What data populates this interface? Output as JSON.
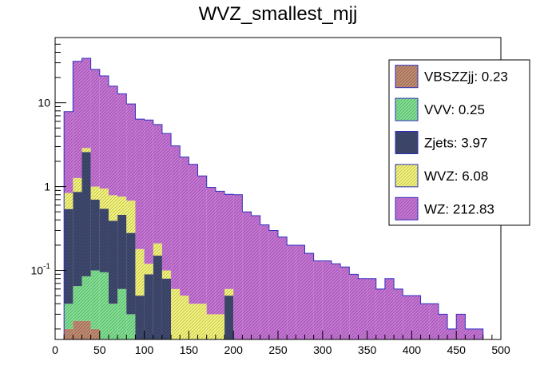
{
  "chart_data": {
    "type": "bar",
    "stacked": true,
    "title": "WVZ_smallest_mjj",
    "xlabel": "",
    "ylabel": "",
    "yscale": "log",
    "xlim": [
      0,
      500
    ],
    "ylim": [
      0.015,
      60
    ],
    "legend_position": "top-right",
    "bin_width": 10,
    "x_ticks": [
      "0",
      "50",
      "100",
      "150",
      "200",
      "250",
      "300",
      "350",
      "400",
      "450",
      "500"
    ],
    "y_ticks": [
      "10^{-1}",
      "1",
      "10"
    ],
    "x_edges": [
      0,
      10,
      20,
      30,
      40,
      50,
      60,
      70,
      80,
      90,
      100,
      110,
      120,
      130,
      140,
      150,
      160,
      170,
      180,
      190,
      200,
      210,
      220,
      230,
      240,
      250,
      260,
      270,
      280,
      290,
      300,
      310,
      320,
      330,
      340,
      350,
      360,
      370,
      380,
      390,
      400,
      410,
      420,
      430,
      440,
      450,
      460,
      470,
      480,
      490,
      500
    ],
    "series": [
      {
        "name": "VBSZZjj: 0.23",
        "color": "#c08a70",
        "values": [
          0,
          0.02,
          0.025,
          0.025,
          0.02,
          0.015,
          0,
          0,
          0,
          0,
          0,
          0,
          0,
          0,
          0,
          0,
          0,
          0,
          0,
          0,
          0,
          0,
          0,
          0,
          0,
          0,
          0,
          0,
          0,
          0,
          0,
          0,
          0,
          0,
          0,
          0,
          0,
          0,
          0,
          0,
          0,
          0,
          0,
          0,
          0,
          0,
          0,
          0,
          0,
          0
        ]
      },
      {
        "name": "VVV: 0.25",
        "color": "#7fe090",
        "values": [
          0,
          0.02,
          0.04,
          0.06,
          0.08,
          0.08,
          0.04,
          0.06,
          0.03,
          0,
          0,
          0,
          0,
          0,
          0,
          0,
          0,
          0,
          0,
          0,
          0,
          0,
          0,
          0,
          0,
          0,
          0,
          0,
          0,
          0,
          0,
          0,
          0,
          0,
          0,
          0,
          0,
          0,
          0,
          0,
          0,
          0,
          0,
          0,
          0,
          0,
          0,
          0,
          0,
          0
        ]
      },
      {
        "name": "Zjets: 3.97",
        "color": "#404a70",
        "values": [
          0,
          0.5,
          0.8,
          2.5,
          0.6,
          0.45,
          0.35,
          0.4,
          0.25,
          0.05,
          0.09,
          0.15,
          0.08,
          0,
          0,
          0,
          0,
          0,
          0,
          0.05,
          0,
          0,
          0,
          0,
          0,
          0,
          0,
          0,
          0,
          0,
          0,
          0,
          0,
          0,
          0,
          0,
          0,
          0,
          0,
          0,
          0,
          0,
          0,
          0,
          0,
          0,
          0,
          0,
          0,
          0
        ]
      },
      {
        "name": "WVZ: 6.08",
        "color": "#f4f47a",
        "values": [
          0,
          0.3,
          0.4,
          0.3,
          0.3,
          0.4,
          0.4,
          0.3,
          0.4,
          0.13,
          0.03,
          0.06,
          0.02,
          0.06,
          0.05,
          0.04,
          0.04,
          0.03,
          0.03,
          0.01,
          0,
          0,
          0,
          0,
          0,
          0,
          0,
          0,
          0,
          0,
          0,
          0,
          0,
          0,
          0,
          0,
          0,
          0,
          0,
          0,
          0,
          0,
          0,
          0,
          0,
          0,
          0,
          0,
          0,
          0
        ]
      },
      {
        "name": "WZ: 212.83",
        "color": "#c673d6",
        "values": [
          0,
          7,
          30,
          31,
          24,
          20,
          15,
          12,
          9,
          6.2,
          6.1,
          5.3,
          4.2,
          3.0,
          2.2,
          1.8,
          1.3,
          0.95,
          0.85,
          0.75,
          0.8,
          0.5,
          0.45,
          0.35,
          0.3,
          0.25,
          0.2,
          0.2,
          0.16,
          0.13,
          0.13,
          0.12,
          0.11,
          0.09,
          0.08,
          0.08,
          0.06,
          0.08,
          0.06,
          0.05,
          0.05,
          0.04,
          0.04,
          0.03,
          0.02,
          0.03,
          0.02,
          0.02,
          0,
          0.015
        ]
      }
    ]
  }
}
